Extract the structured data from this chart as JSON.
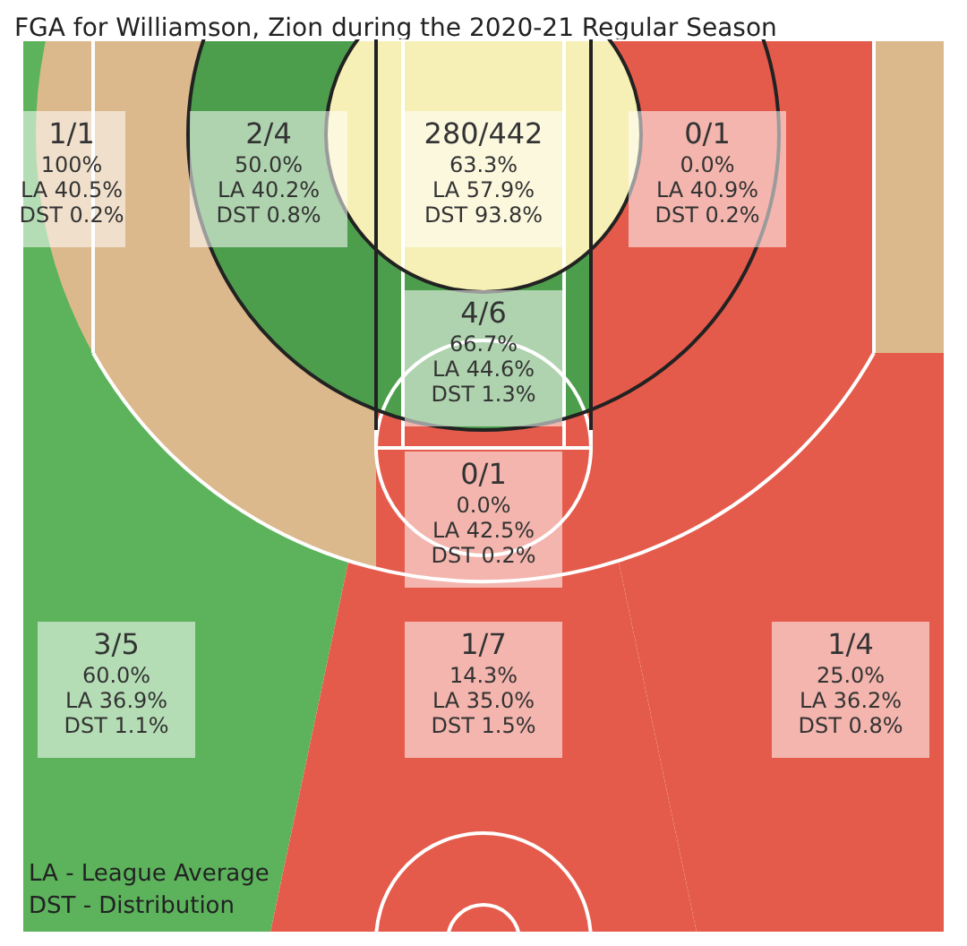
{
  "chart_data": {
    "type": "other",
    "title": "FGA for Williamson, Zion during the 2020-21 Regular Season",
    "categories": [
      null,
      null,
      null,
      null,
      null,
      null,
      null,
      null,
      null
    ],
    "colors": [
      "#5cb35c",
      "#4c9e4c",
      "#f6f0b6",
      "#e55b4b",
      "#4c9e4c",
      "#e55b4b",
      "#5cb35c",
      "#e55b4b",
      "#e55b4b"
    ],
    "values": [
      100,
      50,
      63.3,
      0,
      66.7,
      0,
      60,
      14.3,
      25
    ],
    "value_labels": [
      "100%",
      "50.0%",
      "63.3%",
      "0.0%",
      "66.7%",
      "0.0%",
      "60.0%",
      "14.3%",
      "25.0%"
    ],
    "annotations": [
      "1/1",
      "2/4",
      "280/442",
      "0/1",
      "4/6",
      "0/1",
      "3/5",
      "1/7",
      "1/4",
      "LA 40.5%",
      "LA 40.2%",
      "LA 57.9%",
      "LA 40.9%",
      "LA 44.6%",
      "LA 42.5%",
      "LA 36.9%",
      "LA 35.0%",
      "LA 36.2%",
      "DST 0.2%",
      "DST 0.8%",
      "DST 93.8%",
      "DST 0.2%",
      "DST 1.3%",
      "DST 0.2%",
      "DST 1.1%",
      "DST 1.5%",
      "DST 0.8%",
      "LA - League Average",
      "DST - Distribution"
    ]
  }
}
